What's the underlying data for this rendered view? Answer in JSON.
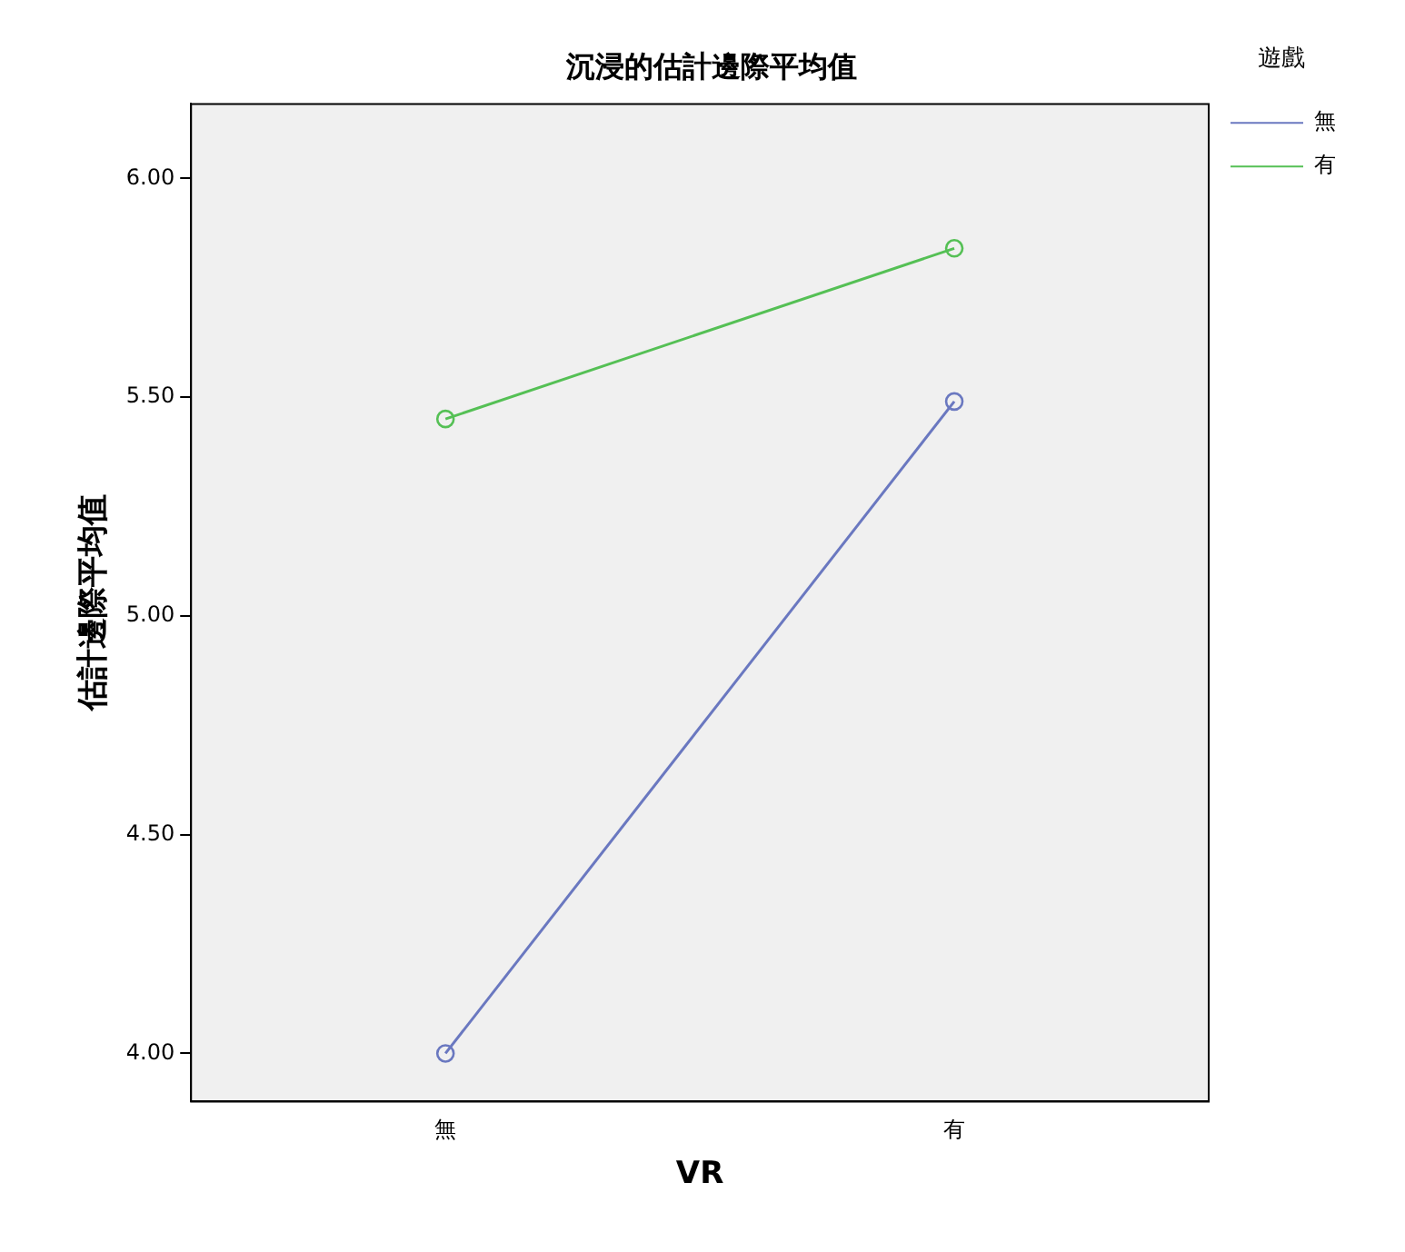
{
  "chart_data": {
    "type": "line",
    "title": "沉浸的估計邊際平均值",
    "xlabel": "VR",
    "ylabel": "估計邊際平均值",
    "legend_title": "遊戲",
    "categories": [
      "無",
      "有"
    ],
    "series": [
      {
        "name": "無",
        "color": "#6a78c0",
        "values": [
          4.0,
          5.49
        ]
      },
      {
        "name": "有",
        "color": "#55c055",
        "values": [
          5.45,
          5.84
        ]
      }
    ],
    "ylim": [
      3.89,
      6.17
    ],
    "yticks": [
      {
        "value": 4,
        "label": "4.00"
      },
      {
        "value": 4.5,
        "label": "4.50"
      },
      {
        "value": 5,
        "label": "5.00"
      },
      {
        "value": 5.5,
        "label": "5.50"
      },
      {
        "value": 6,
        "label": "6.00"
      }
    ],
    "grid": false,
    "legend": "top right",
    "marker": "circle",
    "line_style": "solid"
  }
}
